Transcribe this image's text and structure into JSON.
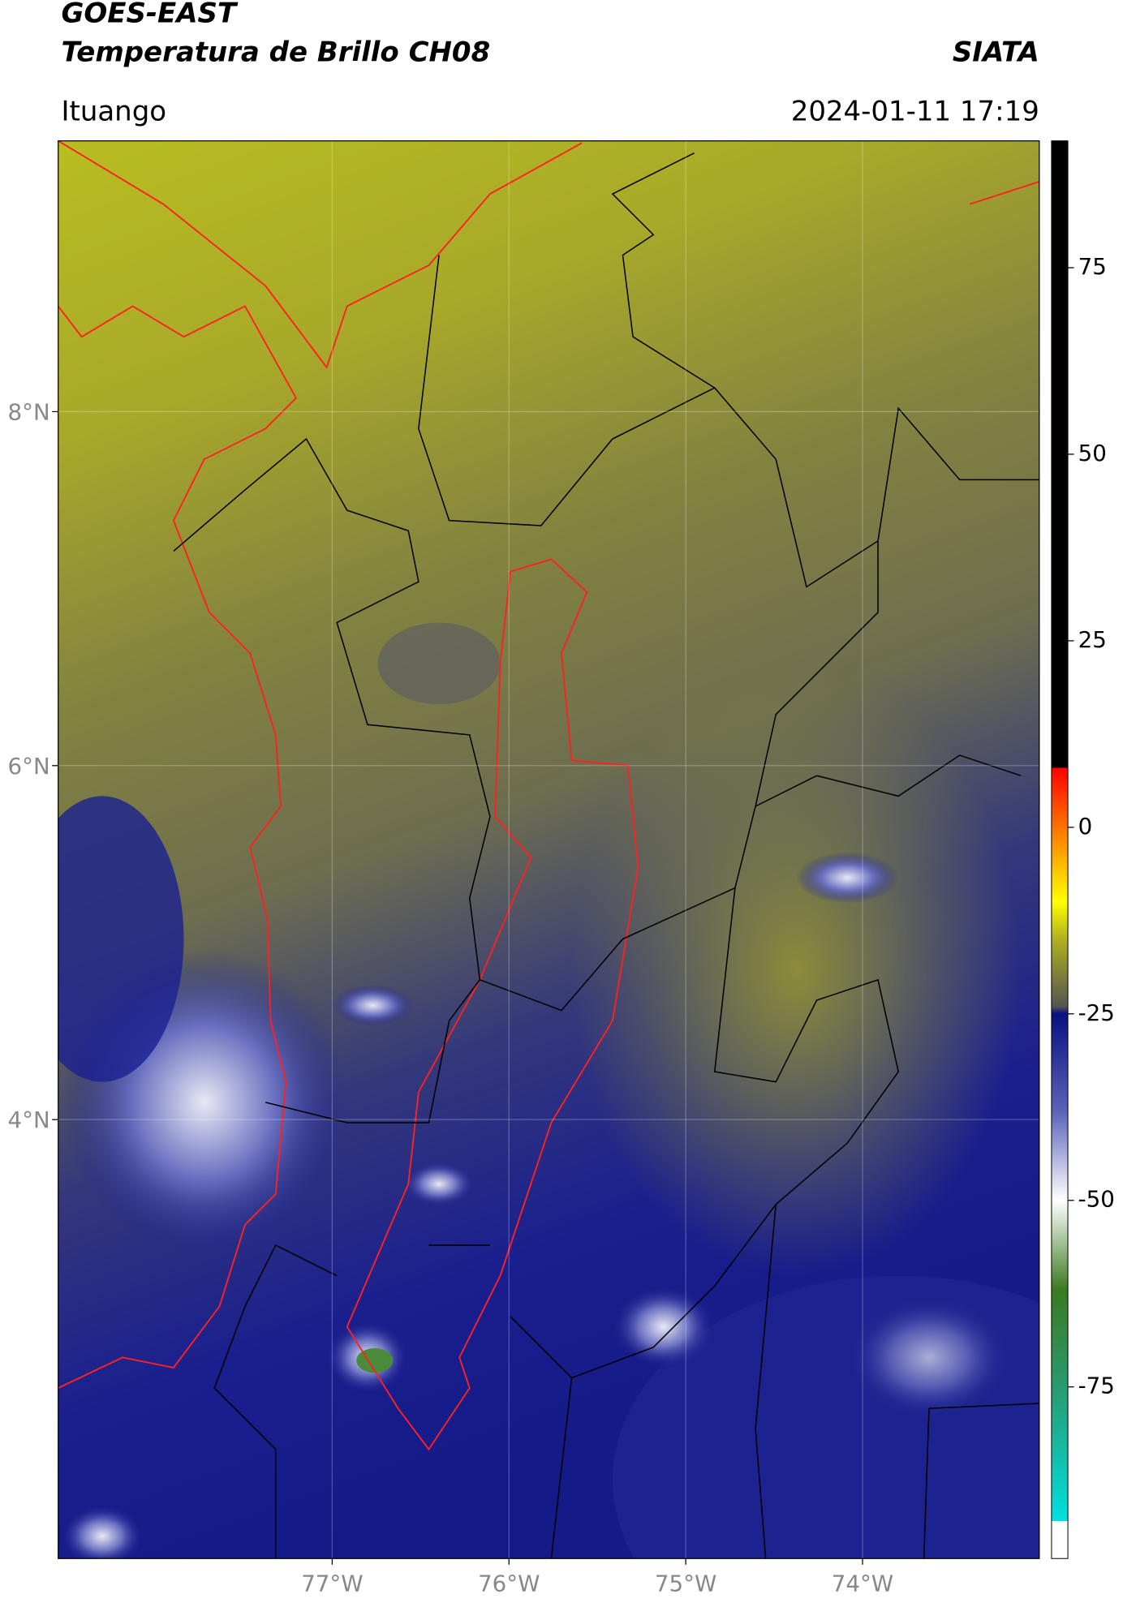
{
  "header": {
    "title": "GOES-EAST",
    "subtitle": "Temperatura de Brillo CH08",
    "brand": "SIATA",
    "location": "Ituango",
    "datetime": "2024-01-11 17:19"
  },
  "map": {
    "xlim": [
      -78.55,
      -73.0
    ],
    "ylim": [
      1.52,
      9.53
    ],
    "xticks": [
      {
        "value": -77,
        "label": "77°W"
      },
      {
        "value": -76,
        "label": "76°W"
      },
      {
        "value": -75,
        "label": "75°W"
      },
      {
        "value": -74,
        "label": "74°W"
      }
    ],
    "yticks": [
      {
        "value": 8,
        "label": "8°N"
      },
      {
        "value": 6,
        "label": "6°N"
      },
      {
        "value": 4,
        "label": "4°N"
      }
    ],
    "grid": true
  },
  "colorbar": {
    "lim": [
      -98,
      92
    ],
    "ticks": [
      75,
      50,
      25,
      0,
      -25,
      -50,
      -75
    ],
    "stops": [
      {
        "value": -98,
        "color": "#ffffff"
      },
      {
        "value": -93,
        "color": "#ffffff"
      },
      {
        "value": -93,
        "color": "#00e0e0"
      },
      {
        "value": -75,
        "color": "#2a9a70"
      },
      {
        "value": -62,
        "color": "#3a7a20"
      },
      {
        "value": -50,
        "color": "#ffffff"
      },
      {
        "value": -38,
        "color": "#5a62b8"
      },
      {
        "value": -25,
        "color": "#0a1080"
      },
      {
        "value": -24,
        "color": "#555550"
      },
      {
        "value": -15,
        "color": "#b0b020"
      },
      {
        "value": -10,
        "color": "#ffff00"
      },
      {
        "value": -2,
        "color": "#ff9000"
      },
      {
        "value": 8,
        "color": "#ff0000"
      },
      {
        "value": 8,
        "color": "#000000"
      },
      {
        "value": 92,
        "color": "#000000"
      }
    ]
  }
}
